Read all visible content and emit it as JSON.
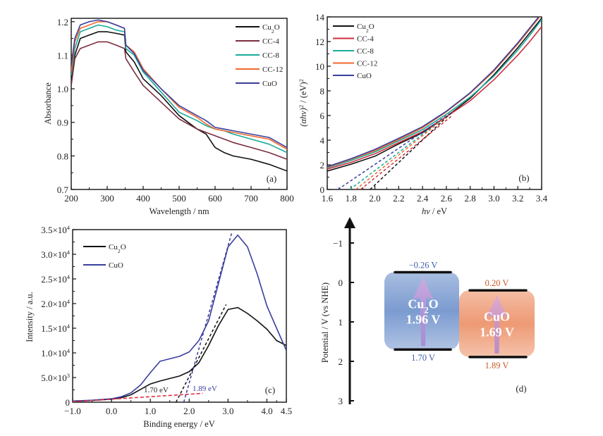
{
  "chart_data": [
    {
      "panel": "a",
      "type": "line",
      "panel_label": "(a)",
      "xlabel": "Wavelength / nm",
      "ylabel": "Absorbance",
      "xlim": [
        200,
        800
      ],
      "ylim": [
        0.7,
        1.21
      ],
      "xticks": [
        200,
        300,
        400,
        500,
        600,
        700,
        800
      ],
      "xtick_labels": [
        "200",
        "300",
        "400",
        "500",
        "600",
        "700",
        "800"
      ],
      "yticks": [
        0.7,
        0.8,
        0.9,
        1.0,
        1.1,
        1.2
      ],
      "ytick_labels": [
        "0.7",
        "0.8",
        "0.9",
        "1.0",
        "1.1",
        "1.2"
      ],
      "legend_position": "top-right",
      "x": [
        200,
        210,
        225,
        250,
        275,
        300,
        325,
        348,
        352,
        375,
        400,
        450,
        500,
        550,
        575,
        600,
        625,
        650,
        700,
        750,
        800
      ],
      "series": [
        {
          "name": "Cu2O",
          "label_main": "Cu",
          "label_sub": "2",
          "label_tail": "O",
          "color": "#111111",
          "values": [
            1.02,
            1.1,
            1.15,
            1.16,
            1.17,
            1.17,
            1.165,
            1.16,
            1.11,
            1.08,
            1.03,
            0.98,
            0.92,
            0.88,
            0.865,
            0.825,
            0.81,
            0.8,
            0.79,
            0.775,
            0.755
          ]
        },
        {
          "name": "CC-4",
          "label_main": "CC-4",
          "label_sub": "",
          "label_tail": "",
          "color": "#7b2d3e",
          "values": [
            1.01,
            1.09,
            1.12,
            1.13,
            1.14,
            1.14,
            1.13,
            1.12,
            1.09,
            1.05,
            1.01,
            0.96,
            0.91,
            0.88,
            0.87,
            0.86,
            0.85,
            0.84,
            0.825,
            0.81,
            0.79
          ]
        },
        {
          "name": "CC-8",
          "label_main": "CC-8",
          "label_sub": "",
          "label_tail": "",
          "color": "#1aab9b",
          "values": [
            1.04,
            1.12,
            1.17,
            1.18,
            1.19,
            1.185,
            1.175,
            1.17,
            1.12,
            1.1,
            1.05,
            0.99,
            0.93,
            0.905,
            0.89,
            0.88,
            0.875,
            0.865,
            0.85,
            0.835,
            0.81
          ]
        },
        {
          "name": "CC-12",
          "label_main": "CC-12",
          "label_sub": "",
          "label_tail": "",
          "color": "#f26a2e",
          "values": [
            1.05,
            1.14,
            1.18,
            1.19,
            1.2,
            1.2,
            1.19,
            1.18,
            1.13,
            1.11,
            1.06,
            1.0,
            0.945,
            0.915,
            0.895,
            0.88,
            0.875,
            0.87,
            0.86,
            0.85,
            0.82
          ]
        },
        {
          "name": "CuO",
          "label_main": "CuO",
          "label_sub": "",
          "label_tail": "",
          "color": "#3a3f9e",
          "values": [
            1.07,
            1.15,
            1.19,
            1.2,
            1.205,
            1.2,
            1.19,
            1.18,
            1.13,
            1.105,
            1.055,
            1.0,
            0.95,
            0.92,
            0.905,
            0.885,
            0.88,
            0.875,
            0.865,
            0.855,
            0.825
          ]
        }
      ]
    },
    {
      "panel": "b",
      "type": "line",
      "panel_label": "(b)",
      "xlabel_main": "hν",
      "xlabel_tail": " / eV",
      "ylabel_main": "(αhν)",
      "ylabel_sup": "2",
      "ylabel_tail": " / (eV)",
      "ylabel_sup2": "2",
      "xlim": [
        1.6,
        3.4
      ],
      "ylim": [
        0,
        14
      ],
      "xticks": [
        1.6,
        1.8,
        2.0,
        2.2,
        2.4,
        2.6,
        2.8,
        3.0,
        3.2,
        3.4
      ],
      "xtick_labels": [
        "1.6",
        "1.8",
        "2.0",
        "2.2",
        "2.4",
        "2.6",
        "2.8",
        "3.0",
        "3.2",
        "3.4"
      ],
      "yticks": [
        0,
        2,
        4,
        6,
        8,
        10,
        12,
        14
      ],
      "ytick_labels": [
        "0",
        "2",
        "4",
        "6",
        "8",
        "10",
        "12",
        "14"
      ],
      "legend_position": "top-left",
      "x": [
        1.6,
        1.8,
        2.0,
        2.2,
        2.4,
        2.6,
        2.8,
        3.0,
        3.2,
        3.3,
        3.4
      ],
      "series": [
        {
          "name": "Cu2O",
          "label_main": "Cu",
          "label_sub": "2",
          "label_tail": "O",
          "color": "#111111",
          "bandgap_eV": 1.96,
          "values": [
            1.5,
            2.05,
            2.7,
            3.7,
            4.6,
            5.9,
            7.4,
            9.3,
            11.5,
            12.7,
            13.9
          ]
        },
        {
          "name": "CC-4",
          "label_main": "CC-4",
          "label_sub": "",
          "label_tail": "",
          "color": "#d12e3f",
          "bandgap_eV": 1.88,
          "values": [
            1.65,
            2.2,
            2.9,
            3.8,
            4.7,
            5.9,
            7.2,
            8.9,
            10.9,
            12.0,
            13.2
          ]
        },
        {
          "name": "CC-8",
          "label_main": "CC-8",
          "label_sub": "",
          "label_tail": "",
          "color": "#1aab9b",
          "bandgap_eV": 1.79,
          "values": [
            1.75,
            2.35,
            3.05,
            3.95,
            4.85,
            6.1,
            7.5,
            9.2,
            11.3,
            12.5,
            13.8
          ]
        },
        {
          "name": "CC-12",
          "label_main": "CC-12",
          "label_sub": "",
          "label_tail": "",
          "color": "#f26a2e",
          "bandgap_eV": 1.84,
          "values": [
            1.8,
            2.45,
            3.15,
            4.05,
            5.0,
            6.3,
            7.8,
            9.6,
            11.8,
            13.0,
            14.2
          ]
        },
        {
          "name": "CuO",
          "label_main": "CuO",
          "label_sub": "",
          "label_tail": "",
          "color": "#3a3f9e",
          "bandgap_eV": 1.69,
          "values": [
            1.85,
            2.5,
            3.25,
            4.15,
            5.1,
            6.35,
            7.85,
            9.7,
            11.9,
            13.1,
            14.3
          ]
        }
      ]
    },
    {
      "panel": "c",
      "type": "line",
      "panel_label": "(c)",
      "xlabel": "Binding energy / eV",
      "ylabel": "Intensity / a.u.",
      "xlim": [
        -1.0,
        4.5
      ],
      "ylim": [
        0,
        35000
      ],
      "xticks": [
        -1.0,
        0.0,
        1.0,
        2.0,
        3.0,
        4.0,
        4.5
      ],
      "xtick_labels": [
        "−1.0",
        "0.0",
        "1.0",
        "2.0",
        "3.0",
        "4.0",
        "4.5"
      ],
      "yticks": [
        0,
        5000,
        10000,
        15000,
        20000,
        25000,
        30000,
        35000
      ],
      "ytick_labels_mant": [
        "0",
        "5.0×10",
        "1.0×10",
        "1.5×10",
        "2.0×10",
        "2.5×10",
        "3.0×10",
        "3.5×10"
      ],
      "ytick_labels_exp": [
        "",
        "3",
        "4",
        "4",
        "4",
        "4",
        "4",
        "4"
      ],
      "legend_position": "top-left",
      "x": [
        -1.0,
        -0.5,
        0.0,
        0.25,
        0.5,
        0.75,
        1.0,
        1.25,
        1.5,
        1.75,
        2.0,
        2.25,
        2.5,
        2.75,
        3.0,
        3.25,
        3.5,
        3.75,
        4.0,
        4.25,
        4.5
      ],
      "series": [
        {
          "name": "Cu2O",
          "label_main": "Cu",
          "label_sub": "2",
          "label_tail": "O",
          "color": "#111111",
          "values": [
            200,
            350,
            600,
            900,
            1500,
            2600,
            3700,
            4300,
            4800,
            5300,
            6200,
            8000,
            11500,
            15500,
            18800,
            19200,
            18000,
            16500,
            14800,
            12500,
            11500
          ]
        },
        {
          "name": "CuO",
          "label_main": "CuO",
          "label_sub": "",
          "label_tail": "",
          "color": "#3a3f9e",
          "values": [
            250,
            400,
            700,
            1100,
            1900,
            3500,
            6000,
            8300,
            8800,
            9300,
            10200,
            12500,
            16500,
            24000,
            31500,
            33900,
            31500,
            26000,
            19500,
            15000,
            10500
          ]
        }
      ],
      "annotations": [
        {
          "text": "1.70 eV",
          "color": "#222222",
          "onset_x": 1.7
        },
        {
          "text": "1.89 eV",
          "color": "#3a3f9e",
          "onset_x": 1.89
        }
      ],
      "baseline_color": "#e03040"
    },
    {
      "panel": "d",
      "type": "diagram",
      "panel_label": "(d)",
      "ylabel": "Potential / V (vs NHE)",
      "ylim": [
        -1.6,
        3
      ],
      "yticks": [
        -1,
        0,
        1,
        2,
        3
      ],
      "ytick_labels": [
        "−1",
        "0",
        "1",
        "2",
        "3"
      ],
      "bands": [
        {
          "name": "Cu2O",
          "label_main": "Cu",
          "label_sub": "2",
          "label_tail": "O",
          "gap_label": "1.96 V",
          "cb": -0.26,
          "vb": 1.7,
          "cb_label": "−0.26 V",
          "vb_label": "1.70 V",
          "fill": "#7b9bd0",
          "text_color": "#3f5fa8"
        },
        {
          "name": "CuO",
          "label_main": "CuO",
          "label_sub": "",
          "label_tail": "",
          "gap_label": "1.69 V",
          "cb": 0.2,
          "vb": 1.89,
          "cb_label": "0.20 V",
          "vb_label": "1.89 V",
          "fill": "#ee9a74",
          "text_color": "#c85a2a"
        }
      ]
    }
  ]
}
